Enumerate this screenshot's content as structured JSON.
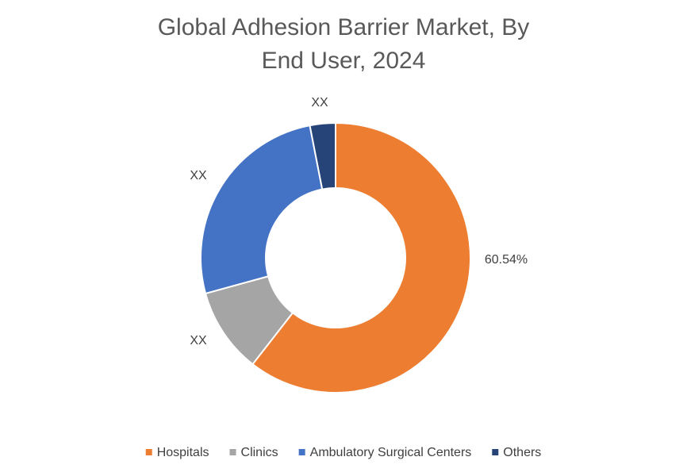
{
  "chart_data": {
    "type": "donut",
    "title": "Global Adhesion Barrier Market, By End User, 2024",
    "categories": [
      "Hospitals",
      "Clinics",
      "Ambulatory Surgical Centers",
      "Others"
    ],
    "values": [
      60.54,
      10.2,
      26.2,
      3.06
    ],
    "value_labels": [
      "60.54%",
      "XX",
      "XX",
      "XX"
    ],
    "colors": [
      "#ED7D31",
      "#A5A5A5",
      "#4472C4",
      "#264478"
    ],
    "legend": "bottom"
  }
}
